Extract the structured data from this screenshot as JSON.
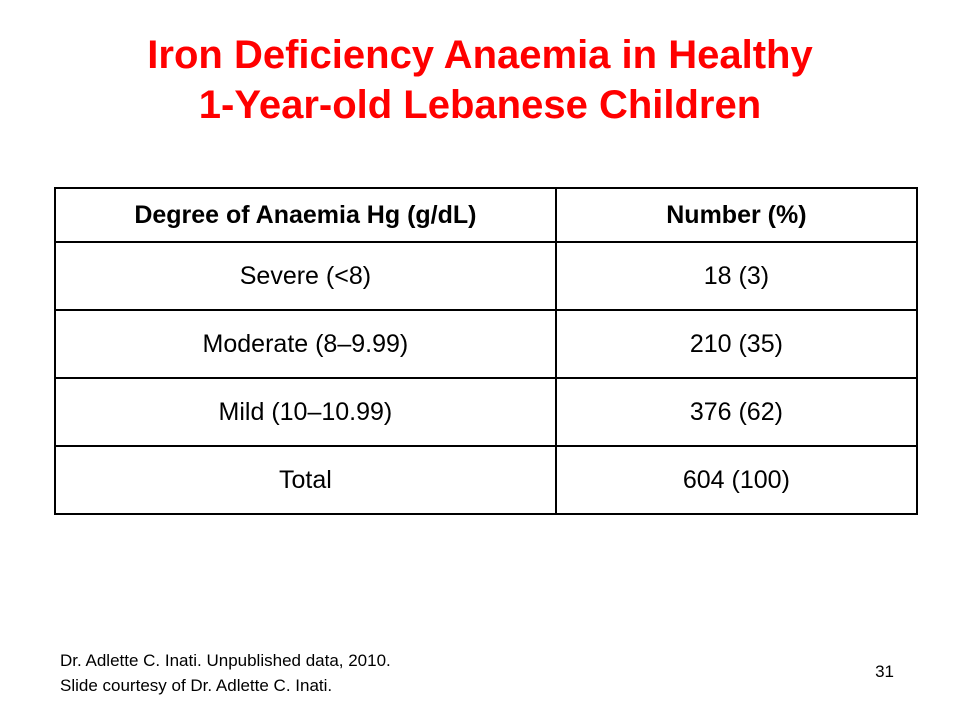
{
  "slide": {
    "title_line1": "Iron Deficiency Anaemia in Healthy",
    "title_line2": "1-Year-old Lebanese Children",
    "page_number": "31",
    "title_color": "#ff0000"
  },
  "table": {
    "headers": [
      "Degree of Anaemia Hg (g/dL)",
      "Number (%)"
    ],
    "rows": [
      [
        "Severe (<8)",
        "18 (3)"
      ],
      [
        "Moderate (8–9.99)",
        "210 (35)"
      ],
      [
        "Mild (10–10.99)",
        "376 (62)"
      ],
      [
        "Total",
        "604 (100)"
      ]
    ]
  },
  "footnote": {
    "line1": "Dr. Adlette C. Inati. Unpublished data, 2010.",
    "line2": "Slide courtesy of Dr. Adlette C. Inati."
  }
}
